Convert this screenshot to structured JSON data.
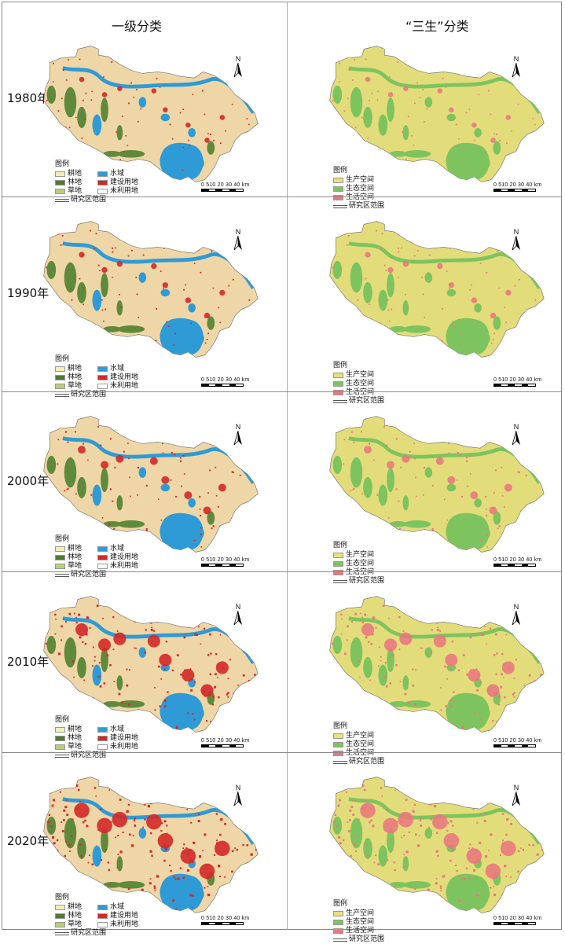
{
  "columns": {
    "left": "一级分类",
    "right": "“三生”分类"
  },
  "years": [
    "1980年",
    "1990年",
    "2000年",
    "2010年",
    "2020年"
  ],
  "legend_left": {
    "title": "图例",
    "items": [
      {
        "label": "耕地",
        "color": "#f3eeb3"
      },
      {
        "label": "水域",
        "color": "#2e9bd6"
      },
      {
        "label": "林地",
        "color": "#4f7a35"
      },
      {
        "label": "建设用地",
        "color": "#d42828"
      },
      {
        "label": "草地",
        "color": "#b7cf78"
      },
      {
        "label": "未利用地",
        "color": "#ffffff"
      }
    ],
    "boundary": "研究区范围"
  },
  "legend_right": {
    "title": "图例",
    "items": [
      {
        "label": "生产空间",
        "color": "#e8e07a"
      },
      {
        "label": "生态空间",
        "color": "#7ec45e"
      },
      {
        "label": "生活空间",
        "color": "#e8797d"
      }
    ],
    "boundary": "研究区范围"
  },
  "north_arrow": "N",
  "scale": {
    "ticks": "0 510 20 30 40",
    "unit": "km"
  },
  "map_colors": {
    "left_base": "#efd6a6",
    "left_water": "#2e9bd6",
    "left_forest": "#5f8a3c",
    "left_built": "#d42828",
    "right_base": "#e3dc7a",
    "right_eco": "#7ec45e",
    "right_life": "#e8797d"
  },
  "built_intensity": [
    0.15,
    0.2,
    0.35,
    0.7,
    0.9
  ]
}
